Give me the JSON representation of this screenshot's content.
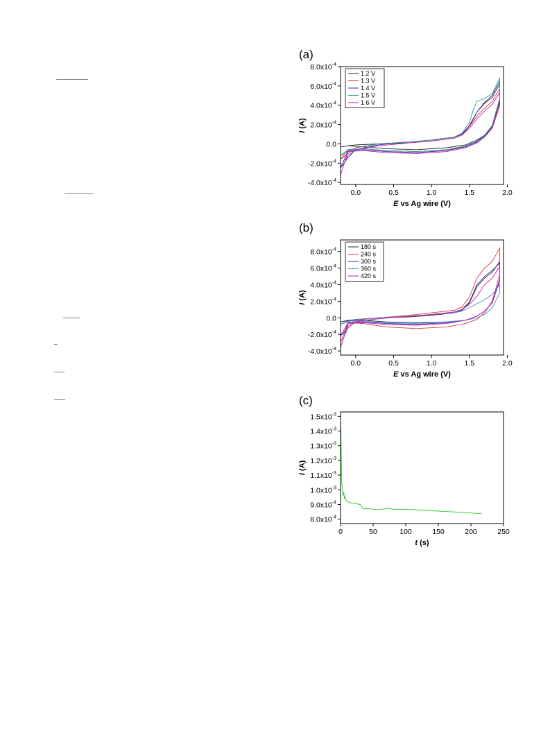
{
  "panels": {
    "a": {
      "label": "(a)"
    },
    "b": {
      "label": "(b)"
    },
    "c": {
      "label": "(c)"
    }
  },
  "chart_data": [
    {
      "id": "a",
      "type": "line",
      "xlabel": {
        "italic": "E",
        "rest": " vs Ag wire (V)"
      },
      "ylabel": {
        "italic": "I",
        "rest": " (A)"
      },
      "xlim": [
        -0.2,
        1.95
      ],
      "ylim": [
        -0.00042,
        0.0008
      ],
      "xticks": [
        0.0,
        0.5,
        1.0,
        1.5,
        2.0
      ],
      "xtick_labels": [
        "0.0",
        "0.5",
        "1.0",
        "1.5",
        "2.0"
      ],
      "yticks": [
        {
          "value": -0.0004,
          "mantissa": "-4.0x10",
          "exp": "-4"
        },
        {
          "value": -0.0002,
          "mantissa": "-2.0x10",
          "exp": "-4"
        },
        {
          "value": 0.0,
          "mantissa": "0.0",
          "exp": ""
        },
        {
          "value": 0.0002,
          "mantissa": "2.0x10",
          "exp": "-4"
        },
        {
          "value": 0.0004,
          "mantissa": "4.0x10",
          "exp": "-4"
        },
        {
          "value": 0.0006,
          "mantissa": "6.0x10",
          "exp": "-4"
        },
        {
          "value": 0.0008,
          "mantissa": "8.0x10",
          "exp": "-4"
        }
      ],
      "legend_position": "top-left",
      "series": [
        {
          "name": "1.2 V",
          "color": "#222222",
          "x": [
            -0.2,
            0.0,
            0.3,
            0.7,
            1.0,
            1.3,
            1.4,
            1.5,
            1.6,
            1.7,
            1.8,
            1.9,
            1.9,
            1.8,
            1.7,
            1.6,
            1.45,
            1.2,
            0.8,
            0.4,
            0.1,
            -0.1,
            -0.2
          ],
          "y": [
            -3e-05,
            -1e-05,
            0.0,
            1e-05,
            3e-05,
            6e-05,
            9e-05,
            0.00018,
            0.00033,
            0.00042,
            0.00048,
            0.00062,
            0.00044,
            0.00018,
            9e-05,
            4e-05,
            -1e-05,
            -4e-05,
            -6e-05,
            -5e-05,
            -3e-05,
            -2e-05,
            -3e-05
          ]
        },
        {
          "name": "1.3 V",
          "color": "#d23b3b",
          "x": [
            -0.2,
            -0.1,
            0.0,
            0.3,
            0.7,
            1.0,
            1.3,
            1.4,
            1.5,
            1.6,
            1.7,
            1.8,
            1.9,
            1.9,
            1.8,
            1.7,
            1.6,
            1.45,
            1.2,
            0.8,
            0.4,
            0.1,
            -0.1,
            -0.2
          ],
          "y": [
            -0.00016,
            -0.0001,
            -4e-05,
            0.0,
            2e-05,
            4e-05,
            7e-05,
            0.0001,
            0.00018,
            0.00029,
            0.00037,
            0.00044,
            0.00057,
            0.00042,
            0.00017,
            8e-05,
            2e-05,
            -3e-05,
            -6e-05,
            -8e-05,
            -7e-05,
            -5e-05,
            -6e-05,
            -0.00016
          ]
        },
        {
          "name": "1.4 V",
          "color": "#2a2ab0",
          "x": [
            -0.2,
            -0.1,
            0.0,
            0.3,
            0.7,
            1.0,
            1.3,
            1.4,
            1.5,
            1.6,
            1.7,
            1.8,
            1.9,
            1.9,
            1.8,
            1.7,
            1.6,
            1.45,
            1.2,
            0.8,
            0.4,
            0.1,
            -0.1,
            -0.2
          ],
          "y": [
            -0.00025,
            -0.00014,
            -6e-05,
            -1e-05,
            2e-05,
            4e-05,
            7e-05,
            0.0001,
            0.00019,
            0.00033,
            0.00043,
            0.0005,
            0.00065,
            0.00045,
            0.00018,
            8e-05,
            2e-05,
            -3e-05,
            -7e-05,
            -9e-05,
            -8e-05,
            -6e-05,
            -7e-05,
            -0.00025
          ]
        },
        {
          "name": "1.5 V",
          "color": "#2a9a8a",
          "x": [
            -0.2,
            -0.1,
            0.0,
            0.3,
            0.7,
            1.0,
            1.3,
            1.4,
            1.5,
            1.55,
            1.6,
            1.7,
            1.8,
            1.9,
            1.9,
            1.8,
            1.7,
            1.6,
            1.45,
            1.2,
            0.8,
            0.4,
            0.1,
            -0.1,
            -0.2
          ],
          "y": [
            -0.00012,
            -8e-05,
            -4e-05,
            0.0,
            2e-05,
            4e-05,
            7e-05,
            0.00011,
            0.00022,
            0.00035,
            0.00044,
            0.00047,
            0.00052,
            0.00068,
            0.00047,
            0.00019,
            9e-05,
            3e-05,
            -2e-05,
            -6e-05,
            -8e-05,
            -7e-05,
            -5e-05,
            -6e-05,
            -0.00012
          ]
        },
        {
          "name": "1.6 V",
          "color": "#c81fb4",
          "x": [
            -0.2,
            -0.15,
            -0.1,
            0.0,
            0.3,
            0.7,
            1.0,
            1.3,
            1.4,
            1.5,
            1.6,
            1.7,
            1.8,
            1.9,
            1.9,
            1.8,
            1.7,
            1.6,
            1.45,
            1.2,
            0.8,
            0.4,
            0.1,
            -0.1,
            -0.2
          ],
          "y": [
            -0.00032,
            -0.0002,
            -0.00012,
            -6e-05,
            -2e-05,
            1e-05,
            3e-05,
            6e-05,
            9e-05,
            0.00016,
            0.00026,
            0.00034,
            0.00041,
            0.00053,
            0.00039,
            0.00016,
            7e-05,
            1e-05,
            -4e-05,
            -8e-05,
            -0.0001,
            -9e-05,
            -7e-05,
            -8e-05,
            -0.00032
          ]
        }
      ]
    },
    {
      "id": "b",
      "type": "line",
      "xlabel": {
        "italic": "E",
        "rest": " vs Ag wire (V)"
      },
      "ylabel": {
        "italic": "I",
        "rest": " (A)"
      },
      "xlim": [
        -0.2,
        1.95
      ],
      "ylim": [
        -0.00045,
        0.00094
      ],
      "xticks": [
        0.0,
        0.5,
        1.0,
        1.5,
        2.0
      ],
      "xtick_labels": [
        "0.0",
        "0.5",
        "1.0",
        "1.5",
        "2.0"
      ],
      "yticks": [
        {
          "value": -0.0004,
          "mantissa": "-4.0x10",
          "exp": "-4"
        },
        {
          "value": -0.0002,
          "mantissa": "-2.0x10",
          "exp": "-4"
        },
        {
          "value": 0.0,
          "mantissa": "0.0",
          "exp": ""
        },
        {
          "value": 0.0002,
          "mantissa": "2.0x10",
          "exp": "-4"
        },
        {
          "value": 0.0004,
          "mantissa": "4.0x10",
          "exp": "-4"
        },
        {
          "value": 0.0006,
          "mantissa": "6.0x10",
          "exp": "-4"
        },
        {
          "value": 0.0008,
          "mantissa": "8.0x10",
          "exp": "-4"
        }
      ],
      "legend_position": "top-left",
      "series": [
        {
          "name": "180 s",
          "color": "#222222",
          "x": [
            -0.2,
            0.0,
            0.3,
            0.7,
            1.0,
            1.3,
            1.4,
            1.5,
            1.6,
            1.7,
            1.8,
            1.9,
            1.9,
            1.8,
            1.7,
            1.6,
            1.45,
            1.2,
            0.8,
            0.4,
            0.1,
            -0.1,
            -0.2
          ],
          "y": [
            -5e-05,
            -2e-05,
            0.0,
            1e-05,
            3e-05,
            6e-05,
            9e-05,
            0.00018,
            0.00038,
            0.00048,
            0.00055,
            0.00068,
            0.00046,
            0.00018,
            8e-05,
            2e-05,
            -3e-05,
            -5e-05,
            -6e-05,
            -5e-05,
            -3e-05,
            -3e-05,
            -5e-05
          ]
        },
        {
          "name": "240 s",
          "color": "#d23b3b",
          "x": [
            -0.2,
            -0.15,
            -0.1,
            0.0,
            0.3,
            0.7,
            1.0,
            1.3,
            1.4,
            1.5,
            1.6,
            1.7,
            1.8,
            1.9,
            1.9,
            1.8,
            1.7,
            1.6,
            1.45,
            1.2,
            0.8,
            0.4,
            0.1,
            -0.1,
            -0.2
          ],
          "y": [
            -0.0003,
            -0.00018,
            -0.0001,
            -3e-05,
            0.0,
            3e-05,
            6e-05,
            9e-05,
            0.00013,
            0.00025,
            0.00048,
            0.0006,
            0.00068,
            0.00084,
            0.00052,
            0.0002,
            6e-05,
            -2e-05,
            -7e-05,
            -0.00011,
            -0.00013,
            -0.00011,
            -7e-05,
            -6e-05,
            -0.0003
          ]
        },
        {
          "name": "300 s",
          "color": "#2a2ab0",
          "x": [
            -0.2,
            -0.1,
            0.0,
            0.3,
            0.7,
            1.0,
            1.3,
            1.4,
            1.5,
            1.6,
            1.7,
            1.8,
            1.9,
            1.9,
            1.8,
            1.7,
            1.6,
            1.45,
            1.2,
            0.8,
            0.4,
            0.1,
            -0.1,
            -0.2
          ],
          "y": [
            -0.00022,
            -0.00012,
            -5e-05,
            -1e-05,
            2e-05,
            4e-05,
            7e-05,
            0.0001,
            0.00019,
            0.0004,
            0.0005,
            0.00057,
            0.00066,
            0.00046,
            0.00018,
            8e-05,
            2e-05,
            -3e-05,
            -6e-05,
            -8e-05,
            -7e-05,
            -5e-05,
            -6e-05,
            -0.00022
          ]
        },
        {
          "name": "360 s",
          "color": "#4a8ad8",
          "x": [
            -0.2,
            -0.1,
            0.0,
            0.3,
            0.7,
            1.0,
            1.3,
            1.4,
            1.5,
            1.6,
            1.7,
            1.8,
            1.9,
            1.9,
            1.8,
            1.7,
            1.6,
            1.45,
            1.2,
            0.8,
            0.4,
            0.1,
            -0.1,
            -0.2
          ],
          "y": [
            -8e-05,
            -5e-05,
            -2e-05,
            0.0,
            2e-05,
            4e-05,
            6e-05,
            8e-05,
            0.00012,
            0.00017,
            0.00022,
            0.00028,
            0.0004,
            0.0003,
            0.00012,
            4e-05,
            0.0,
            -3e-05,
            -5e-05,
            -7e-05,
            -6e-05,
            -4e-05,
            -4e-05,
            -8e-05
          ]
        },
        {
          "name": "420 s",
          "color": "#c81fb4",
          "x": [
            -0.2,
            -0.15,
            -0.1,
            0.0,
            0.3,
            0.7,
            1.0,
            1.3,
            1.4,
            1.5,
            1.6,
            1.7,
            1.8,
            1.9,
            1.9,
            1.8,
            1.7,
            1.6,
            1.45,
            1.2,
            0.8,
            0.4,
            0.1,
            -0.1,
            -0.2
          ],
          "y": [
            -0.00036,
            -0.00022,
            -0.00012,
            -5e-05,
            -1e-05,
            2e-05,
            4e-05,
            7e-05,
            0.0001,
            0.00016,
            0.00026,
            0.0004,
            0.00048,
            0.00062,
            0.00044,
            0.00018,
            8e-05,
            2e-05,
            -3e-05,
            -7e-05,
            -9e-05,
            -8e-05,
            -6e-05,
            -7e-05,
            -0.00036
          ]
        }
      ]
    },
    {
      "id": "c",
      "type": "line",
      "xlabel": {
        "italic": "t",
        "rest": " (s)"
      },
      "ylabel": {
        "italic": "I",
        "rest": " (A)"
      },
      "xlim": [
        0,
        250
      ],
      "ylim": [
        0.00077,
        0.00153
      ],
      "xticks": [
        0,
        50,
        100,
        150,
        200,
        250
      ],
      "xtick_labels": [
        "0",
        "50",
        "100",
        "150",
        "200",
        "250"
      ],
      "yticks": [
        {
          "value": 0.0008,
          "mantissa": "8.0x10",
          "exp": "-4"
        },
        {
          "value": 0.0009,
          "mantissa": "9.0x10",
          "exp": "-4"
        },
        {
          "value": 0.001,
          "mantissa": "1.0x10",
          "exp": "-3"
        },
        {
          "value": 0.0011,
          "mantissa": "1.1x10",
          "exp": "-3"
        },
        {
          "value": 0.0012,
          "mantissa": "1.2x10",
          "exp": "-3"
        },
        {
          "value": 0.0013,
          "mantissa": "1.3x10",
          "exp": "-3"
        },
        {
          "value": 0.0014,
          "mantissa": "1.4x10",
          "exp": "-3"
        },
        {
          "value": 0.0015,
          "mantissa": "1.5x10",
          "exp": "-3"
        }
      ],
      "series": [
        {
          "color": "#22cc22",
          "x": [
            0,
            0.5,
            1,
            1.5,
            2,
            3,
            4,
            5,
            6,
            7,
            8,
            10,
            13,
            16,
            20,
            25,
            30,
            35,
            40,
            50,
            60,
            70,
            75,
            80,
            90,
            100,
            110,
            120,
            140,
            160,
            180,
            200,
            216
          ],
          "y": [
            0.00146,
            0.00141,
            0.00127,
            0.00112,
            0.00104,
            0.00099,
            0.00096,
            0.000985,
            0.00094,
            0.000955,
            0.00093,
            0.00092,
            0.000915,
            0.00091,
            0.00091,
            0.000905,
            0.0009,
            0.00087,
            0.000872,
            0.000868,
            0.000866,
            0.000872,
            0.000876,
            0.000866,
            0.000868,
            0.000866,
            0.000866,
            0.000862,
            0.000858,
            0.000852,
            0.000848,
            0.000842,
            0.000838
          ]
        }
      ]
    }
  ]
}
